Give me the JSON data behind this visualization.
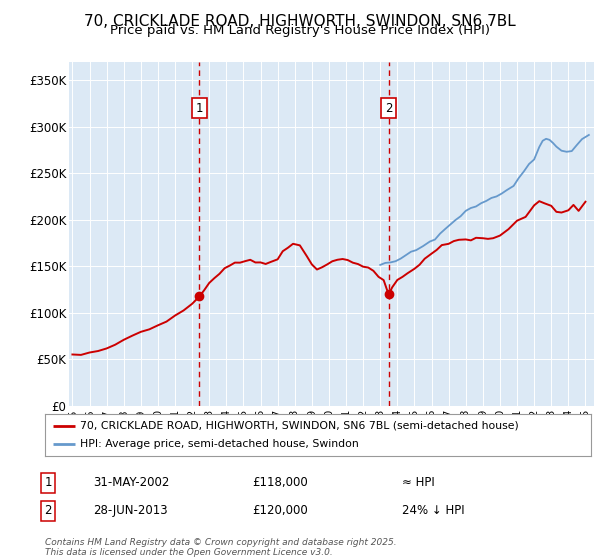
{
  "title": "70, CRICKLADE ROAD, HIGHWORTH, SWINDON, SN6 7BL",
  "subtitle": "Price paid vs. HM Land Registry's House Price Index (HPI)",
  "ylabel_ticks": [
    "£0",
    "£50K",
    "£100K",
    "£150K",
    "£200K",
    "£250K",
    "£300K",
    "£350K"
  ],
  "ytick_values": [
    0,
    50000,
    100000,
    150000,
    200000,
    250000,
    300000,
    350000
  ],
  "ylim": [
    0,
    370000
  ],
  "xlim_start": 1994.8,
  "xlim_end": 2025.5,
  "background_color": "#dce9f5",
  "red_line_color": "#cc0000",
  "blue_line_color": "#6699cc",
  "event1_x": 2002.42,
  "event1_y": 118000,
  "event2_x": 2013.49,
  "event2_y": 120000,
  "legend_label1": "70, CRICKLADE ROAD, HIGHWORTH, SWINDON, SN6 7BL (semi-detached house)",
  "legend_label2": "HPI: Average price, semi-detached house, Swindon",
  "annotation1_date": "31-MAY-2002",
  "annotation1_price": "£118,000",
  "annotation1_hpi": "≈ HPI",
  "annotation2_date": "28-JUN-2013",
  "annotation2_price": "£120,000",
  "annotation2_hpi": "24% ↓ HPI",
  "footer": "Contains HM Land Registry data © Crown copyright and database right 2025.\nThis data is licensed under the Open Government Licence v3.0.",
  "title_fontsize": 11,
  "subtitle_fontsize": 9.5
}
